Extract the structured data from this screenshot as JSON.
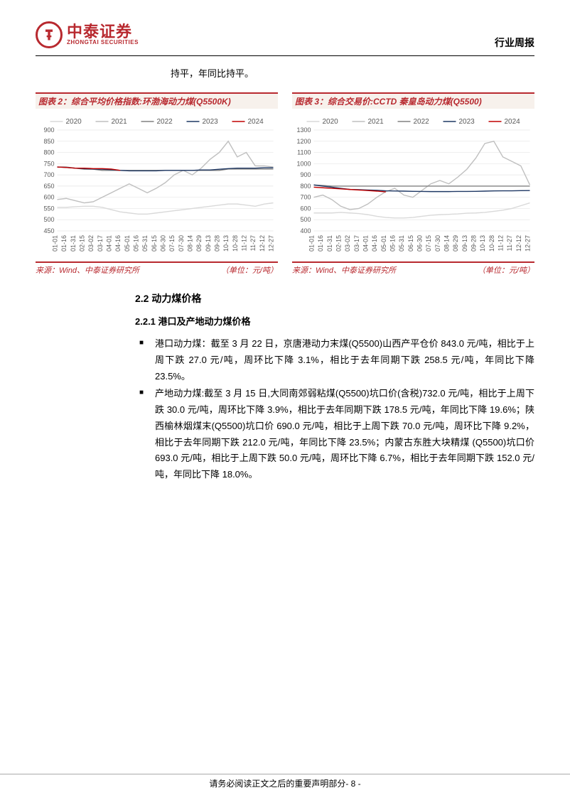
{
  "header": {
    "logo_cn": "中泰证券",
    "logo_en": "ZHONGTAI SECURITIES",
    "report_type": "行业周报"
  },
  "intro_text": "持平，年同比持平。",
  "chart2": {
    "title": "图表 2：综合平均价格指数:环渤海动力煤(Q5500K)",
    "source": "来源：Wind、中泰证券研究所",
    "unit": "（单位：元/吨）",
    "type": "line",
    "ylim": [
      450,
      900
    ],
    "yticks": [
      450,
      500,
      550,
      600,
      650,
      700,
      750,
      800,
      850,
      900
    ],
    "xlabels": [
      "01-01",
      "01-16",
      "01-31",
      "02-15",
      "03-02",
      "03-17",
      "04-01",
      "04-16",
      "05-01",
      "05-16",
      "05-31",
      "06-15",
      "06-30",
      "07-15",
      "07-30",
      "08-14",
      "08-29",
      "09-13",
      "09-28",
      "10-13",
      "10-28",
      "11-12",
      "11-27",
      "12-12",
      "12-27"
    ],
    "legend_labels": [
      "2020",
      "2021",
      "2022",
      "2023",
      "2024"
    ],
    "legend_colors": [
      "#d9d9d9",
      "#bfbfbf",
      "#808080",
      "#1f3864",
      "#c00000"
    ],
    "background_color": "#ffffff",
    "grid_color": "#e6e6e6",
    "axis_fontsize": 9,
    "legend_fontsize": 10,
    "line_width": 1.4,
    "series": {
      "2020": [
        555,
        555,
        558,
        560,
        560,
        555,
        545,
        535,
        530,
        525,
        525,
        530,
        535,
        540,
        545,
        550,
        555,
        560,
        565,
        570,
        570,
        565,
        560,
        570,
        575
      ],
      "2021": [
        590,
        595,
        585,
        575,
        580,
        600,
        620,
        640,
        660,
        640,
        620,
        640,
        665,
        700,
        720,
        700,
        730,
        770,
        800,
        850,
        780,
        800,
        740,
        740,
        735
      ],
      "2022": [
        735,
        735,
        730,
        725,
        725,
        720,
        720,
        720,
        720,
        720,
        720,
        720,
        720,
        720,
        720,
        720,
        720,
        720,
        720,
        726,
        726,
        726,
        726,
        726,
        726
      ],
      "2023": [
        735,
        733,
        730,
        728,
        726,
        725,
        723,
        720,
        718,
        718,
        718,
        718,
        720,
        720,
        720,
        720,
        722,
        722,
        725,
        728,
        730,
        730,
        730,
        732,
        732
      ],
      "2024": [
        735,
        733,
        730,
        730,
        728,
        728,
        726,
        720
      ]
    }
  },
  "chart3": {
    "title": "图表 3：综合交易价:CCTD 秦皇岛动力煤(Q5500)",
    "source": "来源：Wind、中泰证券研究所",
    "unit": "（单位：元/吨）",
    "type": "line",
    "ylim": [
      400,
      1300
    ],
    "yticks": [
      400,
      500,
      600,
      700,
      800,
      900,
      1000,
      1100,
      1200,
      1300
    ],
    "xlabels": [
      "01-01",
      "01-16",
      "01-31",
      "02-15",
      "03-02",
      "03-17",
      "04-01",
      "04-16",
      "05-01",
      "05-16",
      "05-31",
      "06-15",
      "06-30",
      "07-15",
      "07-30",
      "08-14",
      "08-29",
      "09-13",
      "09-28",
      "10-13",
      "10-28",
      "11-12",
      "11-27",
      "12-12",
      "12-27"
    ],
    "legend_labels": [
      "2020",
      "2021",
      "2022",
      "2023",
      "2024"
    ],
    "legend_colors": [
      "#d9d9d9",
      "#bfbfbf",
      "#808080",
      "#1f3864",
      "#c00000"
    ],
    "background_color": "#ffffff",
    "grid_color": "#e6e6e6",
    "axis_fontsize": 9,
    "legend_fontsize": 10,
    "line_width": 1.4,
    "series": {
      "2020": [
        560,
        560,
        560,
        565,
        560,
        555,
        545,
        530,
        520,
        515,
        515,
        520,
        530,
        540,
        545,
        548,
        552,
        558,
        560,
        565,
        575,
        585,
        600,
        625,
        650
      ],
      "2021": [
        700,
        720,
        680,
        620,
        590,
        600,
        640,
        700,
        750,
        780,
        720,
        700,
        760,
        820,
        850,
        820,
        880,
        950,
        1050,
        1180,
        1200,
        1060,
        1020,
        980,
        810
      ],
      "2022": [
        810,
        805,
        800,
        800,
        800,
        800,
        800,
        800,
        800,
        800,
        800,
        800,
        800,
        800,
        800,
        800,
        800,
        800,
        800,
        800,
        800,
        800,
        800,
        800,
        800
      ],
      "2023": [
        810,
        800,
        790,
        780,
        770,
        768,
        765,
        762,
        758,
        756,
        755,
        753,
        752,
        751,
        751,
        751,
        752,
        752,
        753,
        755,
        757,
        758,
        758,
        759,
        760
      ],
      "2024": [
        790,
        785,
        780,
        775,
        770,
        765,
        760,
        755,
        748
      ]
    }
  },
  "section": {
    "h2": "2.2 动力煤价格",
    "h3": "2.2.1 港口及产地动力煤价格",
    "bullets": [
      "港口动力煤：截至 3 月 22 日，京唐港动力末煤(Q5500)山西产平仓价 843.0 元/吨，相比于上周下跌 27.0 元/吨，周环比下降 3.1%，相比于去年同期下跌 258.5 元/吨，年同比下降 23.5%。",
      "产地动力煤:截至 3 月 15 日,大同南郊弱粘煤(Q5500)坑口价(含税)732.0 元/吨，相比于上周下跌 30.0 元/吨，周环比下降 3.9%，相比于去年同期下跌 178.5 元/吨，年同比下降 19.6%；陕西榆林烟煤末(Q5500)坑口价 690.0 元/吨，相比于上周下跌 70.0 元/吨，周环比下降 9.2%，相比于去年同期下跌 212.0 元/吨，年同比下降 23.5%；内蒙古东胜大块精煤 (Q5500)坑口价 693.0 元/吨，相比于上周下跌 50.0 元/吨，周环比下降 6.7%，相比于去年同期下跌 152.0 元/吨，年同比下降 18.0%。"
    ]
  },
  "footer": {
    "text": "请务必阅读正文之后的重要声明部分",
    "page": "- 8 -"
  }
}
